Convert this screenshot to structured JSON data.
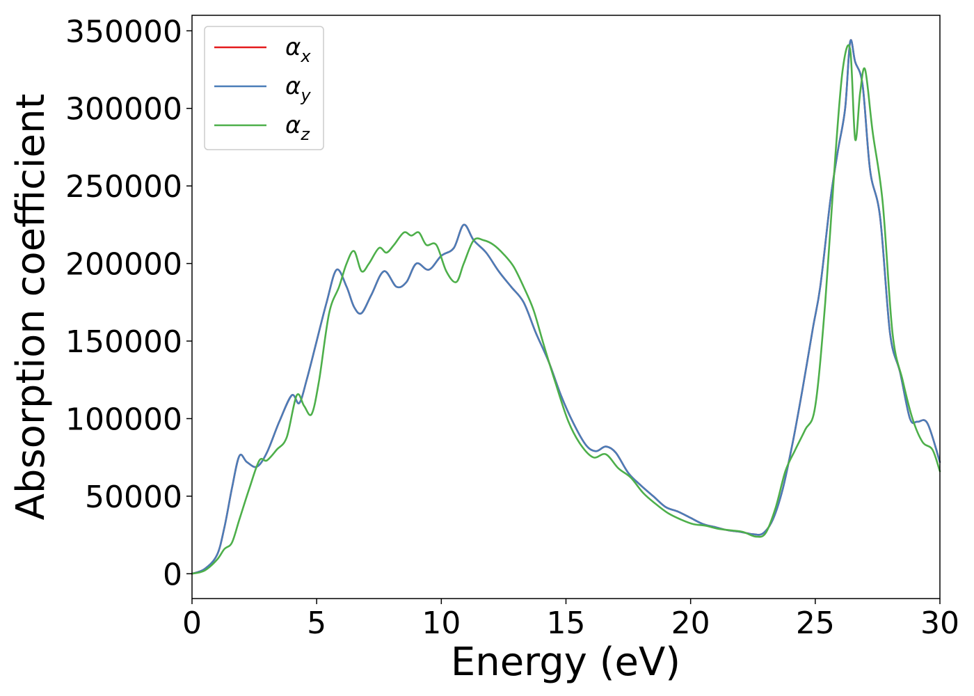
{
  "chart_data": {
    "type": "line",
    "xlabel": "Energy (eV)",
    "ylabel": "Absorption coefficient",
    "xlim": [
      0,
      30
    ],
    "ylim": [
      -16000,
      360000
    ],
    "xticks": [
      0,
      5,
      10,
      15,
      20,
      25,
      30
    ],
    "xtick_labels": [
      "0",
      "5",
      "10",
      "15",
      "20",
      "25",
      "30"
    ],
    "yticks": [
      0,
      50000,
      100000,
      150000,
      200000,
      250000,
      300000,
      350000
    ],
    "ytick_labels": [
      "0",
      "50000",
      "100000",
      "150000",
      "200000",
      "250000",
      "300000",
      "350000"
    ],
    "grid": false,
    "legend_position": "top-left",
    "series": [
      {
        "name": "αx",
        "symbol": "α",
        "subscript": "x",
        "color": "#e41a1c",
        "x": [
          0,
          0.5,
          1.0,
          1.3,
          1.6,
          1.9,
          2.2,
          2.6,
          3.0,
          3.5,
          4.0,
          4.3,
          4.6,
          5.0,
          5.4,
          5.8,
          6.2,
          6.5,
          6.8,
          7.2,
          7.7,
          8.2,
          8.6,
          9.0,
          9.5,
          10.0,
          10.5,
          10.9,
          11.3,
          11.8,
          12.3,
          12.8,
          13.3,
          13.8,
          14.3,
          14.8,
          15.3,
          15.8,
          16.2,
          16.6,
          17.0,
          17.5,
          18.0,
          18.5,
          19.0,
          19.5,
          20.0,
          20.5,
          21.0,
          21.5,
          22.0,
          22.5,
          22.9,
          23.3,
          23.7,
          24.1,
          24.5,
          24.9,
          25.2,
          25.6,
          25.9,
          26.2,
          26.4,
          26.6,
          26.9,
          27.2,
          27.6,
          28.0,
          28.4,
          28.8,
          29.1,
          29.5,
          30.0
        ],
        "y": [
          0,
          3000,
          12000,
          30000,
          55000,
          76000,
          72000,
          69000,
          78000,
          98000,
          115000,
          110000,
          125000,
          150000,
          175000,
          196000,
          185000,
          172000,
          168000,
          180000,
          195000,
          185000,
          188000,
          200000,
          196000,
          205000,
          210000,
          225000,
          215000,
          207000,
          195000,
          185000,
          175000,
          155000,
          137000,
          115000,
          97000,
          83000,
          79000,
          82000,
          78000,
          65000,
          57000,
          50000,
          43000,
          40000,
          36000,
          32000,
          30000,
          28000,
          27000,
          25500,
          26000,
          35000,
          55000,
          85000,
          120000,
          158000,
          185000,
          240000,
          272000,
          300000,
          343000,
          330000,
          315000,
          260000,
          230000,
          155000,
          130000,
          100000,
          98000,
          97000,
          72000
        ]
      },
      {
        "name": "αy",
        "symbol": "α",
        "subscript": "y",
        "color": "#4a7db8",
        "x": [
          0,
          0.5,
          1.0,
          1.3,
          1.6,
          1.9,
          2.2,
          2.6,
          3.0,
          3.5,
          4.0,
          4.3,
          4.6,
          5.0,
          5.4,
          5.8,
          6.2,
          6.5,
          6.8,
          7.2,
          7.7,
          8.2,
          8.6,
          9.0,
          9.5,
          10.0,
          10.5,
          10.9,
          11.3,
          11.8,
          12.3,
          12.8,
          13.3,
          13.8,
          14.3,
          14.8,
          15.3,
          15.8,
          16.2,
          16.6,
          17.0,
          17.5,
          18.0,
          18.5,
          19.0,
          19.5,
          20.0,
          20.5,
          21.0,
          21.5,
          22.0,
          22.5,
          22.9,
          23.3,
          23.7,
          24.1,
          24.5,
          24.9,
          25.2,
          25.6,
          25.9,
          26.2,
          26.4,
          26.6,
          26.9,
          27.2,
          27.6,
          28.0,
          28.4,
          28.8,
          29.1,
          29.5,
          30.0
        ],
        "y": [
          0,
          3000,
          12000,
          30000,
          55000,
          76000,
          72000,
          69000,
          78000,
          98000,
          115000,
          110000,
          125000,
          150000,
          175000,
          196000,
          185000,
          172000,
          168000,
          180000,
          195000,
          185000,
          188000,
          200000,
          196000,
          205000,
          210000,
          225000,
          215000,
          207000,
          195000,
          185000,
          175000,
          155000,
          137000,
          115000,
          97000,
          83000,
          79000,
          82000,
          78000,
          65000,
          57000,
          50000,
          43000,
          40000,
          36000,
          32000,
          30000,
          28000,
          27000,
          25500,
          26000,
          35000,
          55000,
          85000,
          120000,
          158000,
          185000,
          240000,
          272000,
          300000,
          343000,
          330000,
          315000,
          260000,
          230000,
          155000,
          130000,
          100000,
          98000,
          97000,
          72000
        ]
      },
      {
        "name": "αz",
        "symbol": "α",
        "subscript": "z",
        "color": "#4daf4a",
        "x": [
          0,
          0.5,
          1.0,
          1.3,
          1.6,
          1.9,
          2.3,
          2.7,
          3.0,
          3.4,
          3.8,
          4.2,
          4.5,
          4.8,
          5.1,
          5.5,
          5.9,
          6.2,
          6.5,
          6.8,
          7.1,
          7.5,
          7.8,
          8.1,
          8.5,
          8.8,
          9.1,
          9.4,
          9.8,
          10.2,
          10.6,
          10.9,
          11.3,
          11.7,
          12.1,
          12.5,
          12.9,
          13.3,
          13.7,
          14.1,
          14.6,
          15.1,
          15.6,
          16.1,
          16.6,
          17.1,
          17.6,
          18.1,
          18.6,
          19.1,
          19.6,
          20.1,
          20.6,
          21.1,
          21.6,
          22.1,
          22.6,
          23.0,
          23.4,
          23.8,
          24.2,
          24.6,
          25.0,
          25.4,
          25.8,
          26.1,
          26.4,
          26.6,
          26.8,
          27.0,
          27.3,
          27.7,
          28.1,
          28.5,
          28.9,
          29.3,
          29.7,
          30.0
        ],
        "y": [
          0,
          2000,
          9000,
          16000,
          20000,
          35000,
          55000,
          73000,
          73000,
          80000,
          88000,
          115000,
          108000,
          103000,
          125000,
          168000,
          185000,
          200000,
          208000,
          195000,
          200000,
          210000,
          207000,
          212000,
          220000,
          218000,
          220000,
          212000,
          212000,
          195000,
          188000,
          200000,
          215000,
          215000,
          212000,
          206000,
          198000,
          185000,
          170000,
          148000,
          122000,
          98000,
          83000,
          75000,
          77000,
          68000,
          62000,
          52000,
          45000,
          39000,
          35000,
          32000,
          31000,
          29000,
          28000,
          27000,
          24000,
          26000,
          42000,
          66000,
          80000,
          93000,
          108000,
          175000,
          268000,
          325000,
          338000,
          280000,
          310000,
          325000,
          285000,
          240000,
          155000,
          125000,
          100000,
          85000,
          80000,
          66000
        ]
      }
    ]
  }
}
